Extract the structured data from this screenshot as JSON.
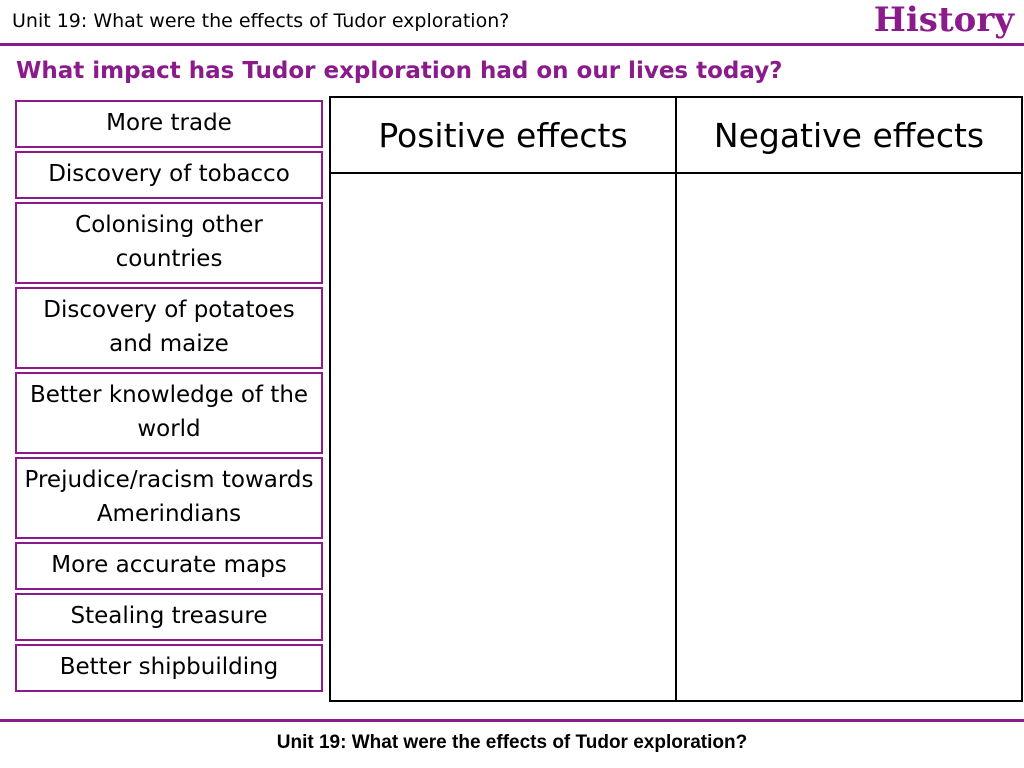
{
  "header": {
    "unit": "Unit 19: What were the effects of Tudor exploration?",
    "subject": "History"
  },
  "question": "What impact has Tudor exploration had on our lives today?",
  "cards": [
    "More trade",
    "Discovery of tobacco",
    "Colonising other countries",
    "Discovery of potatoes and maize",
    "Better knowledge of the world",
    "Prejudice/racism towards Amerindians",
    "More accurate maps",
    "Stealing treasure",
    "Better shipbuilding"
  ],
  "table": {
    "columns": [
      "Positive effects",
      "Negative effects"
    ]
  },
  "footer": "Unit 19: What were the effects of Tudor exploration?"
}
